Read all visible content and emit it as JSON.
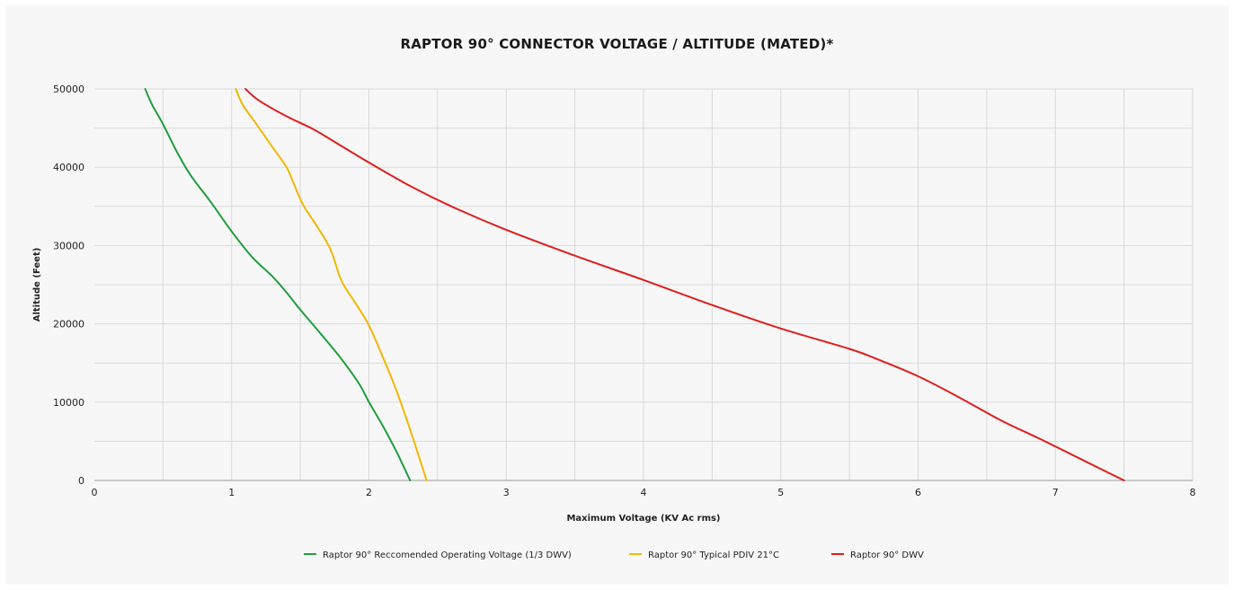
{
  "chart_data": {
    "type": "line",
    "title": "RAPTOR 90° CONNECTOR VOLTAGE / ALTITUDE (MATED)*",
    "xlabel": "Maximum Voltage (KV Ac rms)",
    "ylabel": "Altitude (Feet)",
    "xlim": [
      0,
      8
    ],
    "ylim": [
      0,
      50000
    ],
    "x_ticks": [
      0,
      1,
      2,
      3,
      4,
      5,
      6,
      7,
      8
    ],
    "y_ticks": [
      0,
      10000,
      20000,
      30000,
      40000,
      50000
    ],
    "grid": true,
    "legend_position": "bottom",
    "series": [
      {
        "name": "Raptor 90° Reccomended Operating Voltage (1/3 DWV)",
        "color": "#1e9e3e",
        "points": [
          [
            0.37,
            50000
          ],
          [
            0.42,
            48000
          ],
          [
            0.5,
            45500
          ],
          [
            0.6,
            42000
          ],
          [
            0.7,
            39000
          ],
          [
            0.85,
            35500
          ],
          [
            1.0,
            31800
          ],
          [
            1.15,
            28500
          ],
          [
            1.3,
            26000
          ],
          [
            1.4,
            24000
          ],
          [
            1.5,
            21800
          ],
          [
            1.65,
            18700
          ],
          [
            1.8,
            15500
          ],
          [
            1.93,
            12300
          ],
          [
            2.0,
            10000
          ],
          [
            2.1,
            7000
          ],
          [
            2.2,
            3700
          ],
          [
            2.3,
            0
          ]
        ]
      },
      {
        "name": "Raptor 90° Typical PDIV 21°C",
        "color": "#f2b705",
        "points": [
          [
            1.03,
            50000
          ],
          [
            1.08,
            48000
          ],
          [
            1.18,
            45500
          ],
          [
            1.3,
            42500
          ],
          [
            1.4,
            40000
          ],
          [
            1.45,
            38000
          ],
          [
            1.52,
            35200
          ],
          [
            1.62,
            32500
          ],
          [
            1.72,
            29500
          ],
          [
            1.8,
            25500
          ],
          [
            1.9,
            22700
          ],
          [
            2.0,
            19800
          ],
          [
            2.1,
            15800
          ],
          [
            2.2,
            11500
          ],
          [
            2.3,
            6500
          ],
          [
            2.42,
            0
          ]
        ]
      },
      {
        "name": "Raptor 90° DWV",
        "color": "#e01e1e",
        "points": [
          [
            1.1,
            50000
          ],
          [
            1.2,
            48500
          ],
          [
            1.4,
            46500
          ],
          [
            1.6,
            44800
          ],
          [
            1.8,
            42700
          ],
          [
            2.0,
            40600
          ],
          [
            2.3,
            37600
          ],
          [
            2.6,
            35000
          ],
          [
            3.0,
            32000
          ],
          [
            3.5,
            28700
          ],
          [
            4.0,
            25600
          ],
          [
            4.5,
            22400
          ],
          [
            5.0,
            19400
          ],
          [
            5.5,
            16800
          ],
          [
            5.7,
            15500
          ],
          [
            6.0,
            13300
          ],
          [
            6.3,
            10600
          ],
          [
            6.6,
            7700
          ],
          [
            6.9,
            5200
          ],
          [
            7.2,
            2600
          ],
          [
            7.5,
            0
          ]
        ]
      }
    ]
  }
}
